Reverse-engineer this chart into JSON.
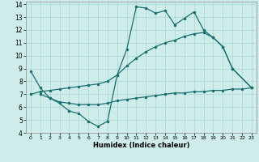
{
  "xlabel": "Humidex (Indice chaleur)",
  "bg_color": "#ceecea",
  "grid_color": "#aed8d4",
  "line_color": "#1a7070",
  "xlim": [
    -0.5,
    23.5
  ],
  "ylim": [
    4,
    14.2
  ],
  "xticks": [
    0,
    1,
    2,
    3,
    4,
    5,
    6,
    7,
    8,
    9,
    10,
    11,
    12,
    13,
    14,
    15,
    16,
    17,
    18,
    19,
    20,
    21,
    22,
    23
  ],
  "yticks": [
    4,
    5,
    6,
    7,
    8,
    9,
    10,
    11,
    12,
    13,
    14
  ],
  "line1_x": [
    0,
    1,
    2,
    3,
    4,
    5,
    6,
    7,
    8,
    9,
    10,
    11,
    12,
    13,
    14,
    15,
    16,
    17,
    18,
    19,
    20,
    21,
    23
  ],
  "line1_y": [
    8.8,
    7.5,
    6.7,
    6.3,
    5.7,
    5.5,
    4.9,
    4.5,
    4.9,
    8.5,
    10.5,
    13.8,
    13.7,
    13.3,
    13.5,
    12.4,
    12.9,
    13.4,
    12.0,
    11.4,
    10.7,
    9.0,
    7.5
  ],
  "line2_x": [
    0,
    1,
    2,
    3,
    4,
    5,
    6,
    7,
    8,
    9,
    10,
    11,
    12,
    13,
    14,
    15,
    16,
    17,
    18,
    19,
    20,
    21,
    23
  ],
  "line2_y": [
    7.0,
    7.2,
    7.3,
    7.4,
    7.5,
    7.6,
    7.7,
    7.8,
    8.0,
    8.5,
    9.2,
    9.8,
    10.3,
    10.7,
    11.0,
    11.2,
    11.5,
    11.7,
    11.8,
    11.4,
    10.7,
    9.0,
    7.5
  ],
  "line3_x": [
    1,
    2,
    3,
    4,
    5,
    6,
    7,
    8,
    9,
    10,
    11,
    12,
    13,
    14,
    15,
    16,
    17,
    18,
    19,
    20,
    21,
    22,
    23
  ],
  "line3_y": [
    7.0,
    6.7,
    6.4,
    6.3,
    6.2,
    6.2,
    6.2,
    6.3,
    6.5,
    6.6,
    6.7,
    6.8,
    6.9,
    7.0,
    7.1,
    7.1,
    7.2,
    7.2,
    7.3,
    7.3,
    7.4,
    7.4,
    7.5
  ]
}
